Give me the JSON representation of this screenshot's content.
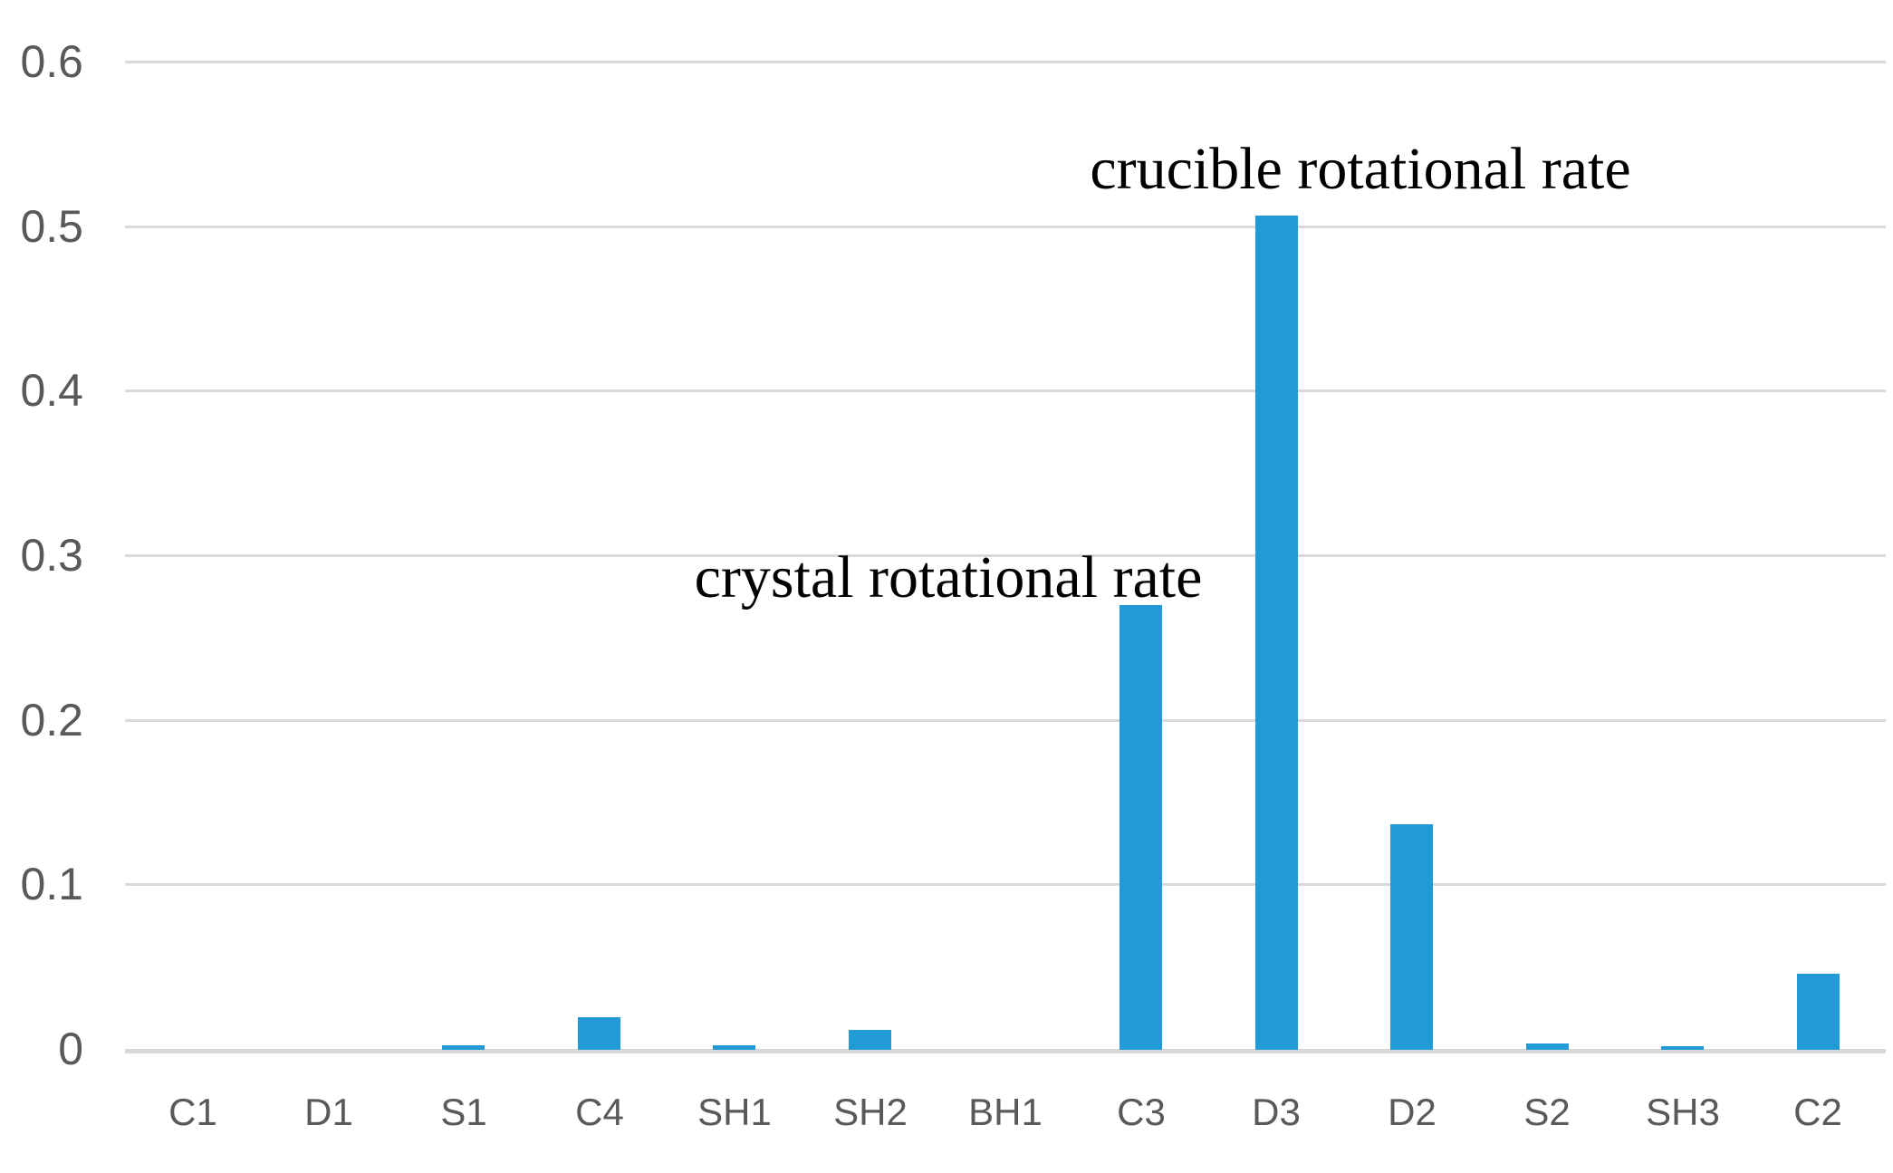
{
  "chart_data": {
    "type": "bar",
    "title": "",
    "xlabel": "",
    "ylabel": "",
    "categories": [
      "C1",
      "D1",
      "S1",
      "C4",
      "SH1",
      "SH2",
      "BH1",
      "C3",
      "D3",
      "D2",
      "S2",
      "SH3",
      "C2"
    ],
    "values": [
      0,
      0,
      0.003,
      0.02,
      0.003,
      0.012,
      0,
      0.27,
      0.507,
      0.137,
      0.004,
      0.002,
      0.046
    ],
    "ylim": [
      0,
      0.6
    ],
    "yticks": [
      0.6,
      0.5,
      0.4,
      0.3,
      0.2,
      0.1,
      0
    ],
    "ytick_labels": [
      "0.6",
      "0.5",
      "0.4",
      "0.3",
      "0.2",
      "0.1",
      "0"
    ],
    "grid": "horizontal",
    "legend": "none",
    "annotations": [
      {
        "text": "crucible rotational rate",
        "near_category": "D3",
        "approx_value": 0.56
      },
      {
        "text": "crystal rotational rate",
        "near_category": "C3",
        "approx_value": 0.3
      }
    ],
    "colors": {
      "bar": "#229ad6",
      "gridline": "#d9d9d9",
      "axis_line": "#d8d8d8",
      "tick_label": "#595959",
      "annotation_text": "#000000",
      "background": "#ffffff"
    }
  }
}
